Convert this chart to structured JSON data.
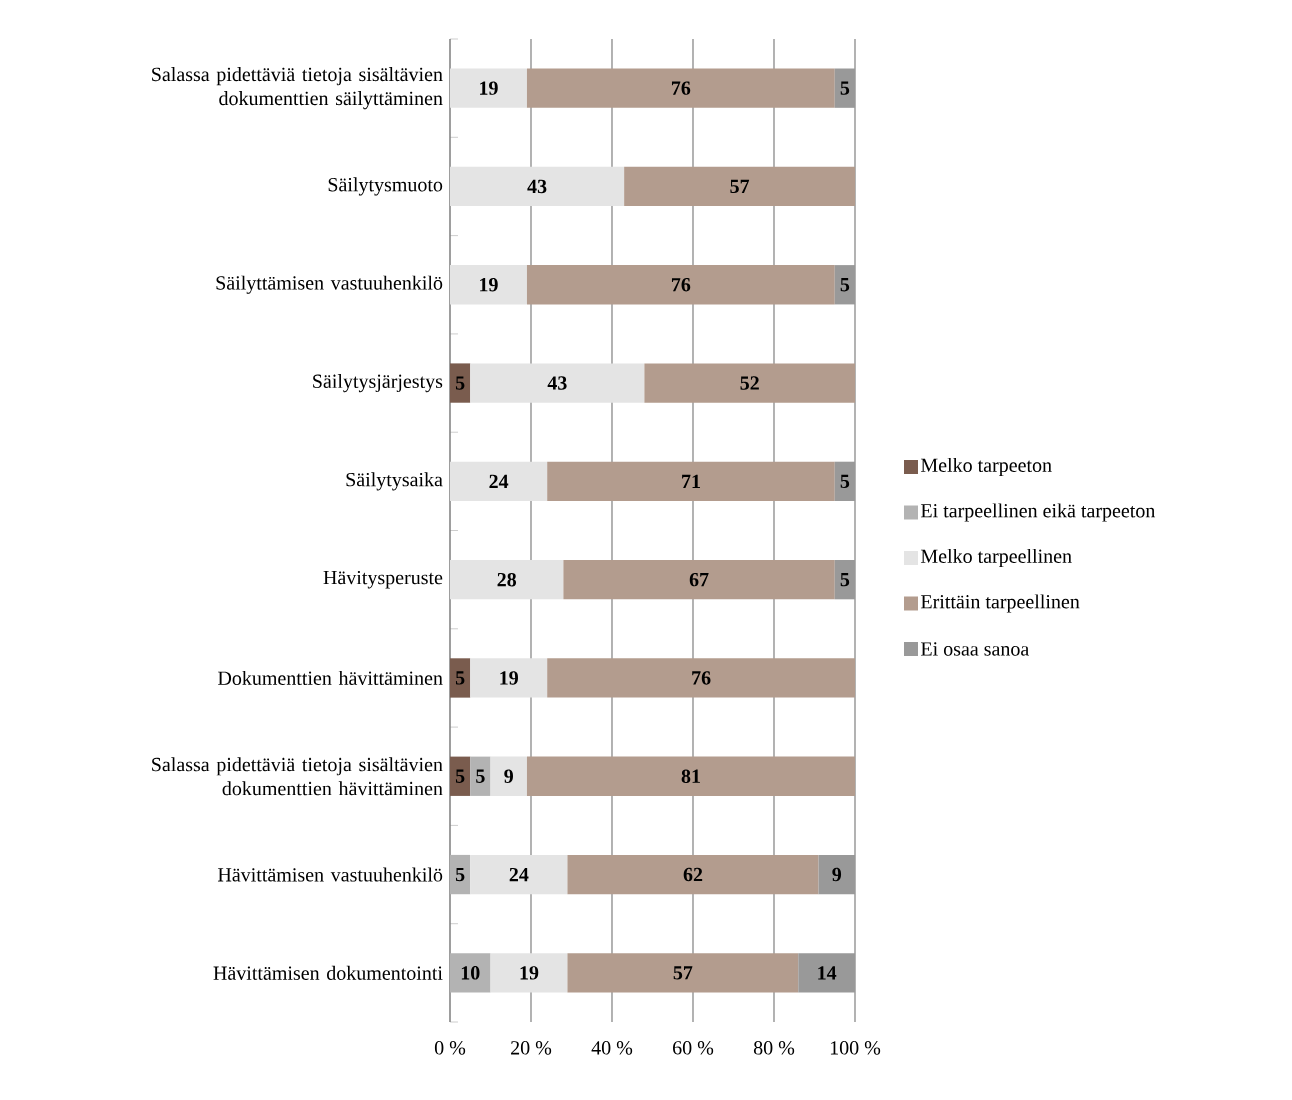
{
  "chart_data": {
    "type": "bar",
    "orientation": "horizontal",
    "stacked": true,
    "data_labels": true,
    "grid": "x",
    "legend": "right",
    "categories": [
      "Salassa pidettäviä tietoja sisältävien dokumenttien säilyttäminen",
      "Säilytysmuoto",
      "Säilyttämisen vastuuhenkilö",
      "Säilytysjärjestys",
      "Säilytysaika",
      "Hävitysperuste",
      "Dokumenttien hävittäminen",
      "Salassa pidettäviä tietoja sisältävien dokumenttien hävittäminen",
      "Hävittämisen vastuuhenkilö",
      "Hävittämisen dokumentointi"
    ],
    "series": [
      {
        "name": "Melko tarpeeton",
        "color": "#7a5c4e",
        "values": [
          null,
          null,
          null,
          5,
          null,
          null,
          5,
          5,
          null,
          null
        ]
      },
      {
        "name": "Ei tarpeellinen eikä tarpeeton",
        "color": "#b3b3b3",
        "values": [
          null,
          null,
          null,
          null,
          null,
          null,
          null,
          5,
          5,
          10
        ]
      },
      {
        "name": "Melko tarpeellinen",
        "color": "#e4e4e4",
        "values": [
          19,
          43,
          19,
          43,
          24,
          28,
          19,
          9,
          24,
          19
        ]
      },
      {
        "name": "Erittäin tarpeellinen",
        "color": "#b39c8e",
        "values": [
          76,
          57,
          76,
          52,
          71,
          67,
          76,
          81,
          62,
          57
        ]
      },
      {
        "name": "Ei osaa sanoa",
        "color": "#999999",
        "values": [
          5,
          null,
          5,
          null,
          5,
          5,
          null,
          null,
          9,
          14
        ]
      }
    ],
    "xlim": [
      0,
      100
    ],
    "xticks": [
      {
        "value": 0,
        "label": "0 %"
      },
      {
        "value": 20,
        "label": "20 %"
      },
      {
        "value": 40,
        "label": "40 %"
      },
      {
        "value": 60,
        "label": "60 %"
      },
      {
        "value": 80,
        "label": "80 %"
      },
      {
        "value": 100,
        "label": "100 %"
      }
    ]
  }
}
